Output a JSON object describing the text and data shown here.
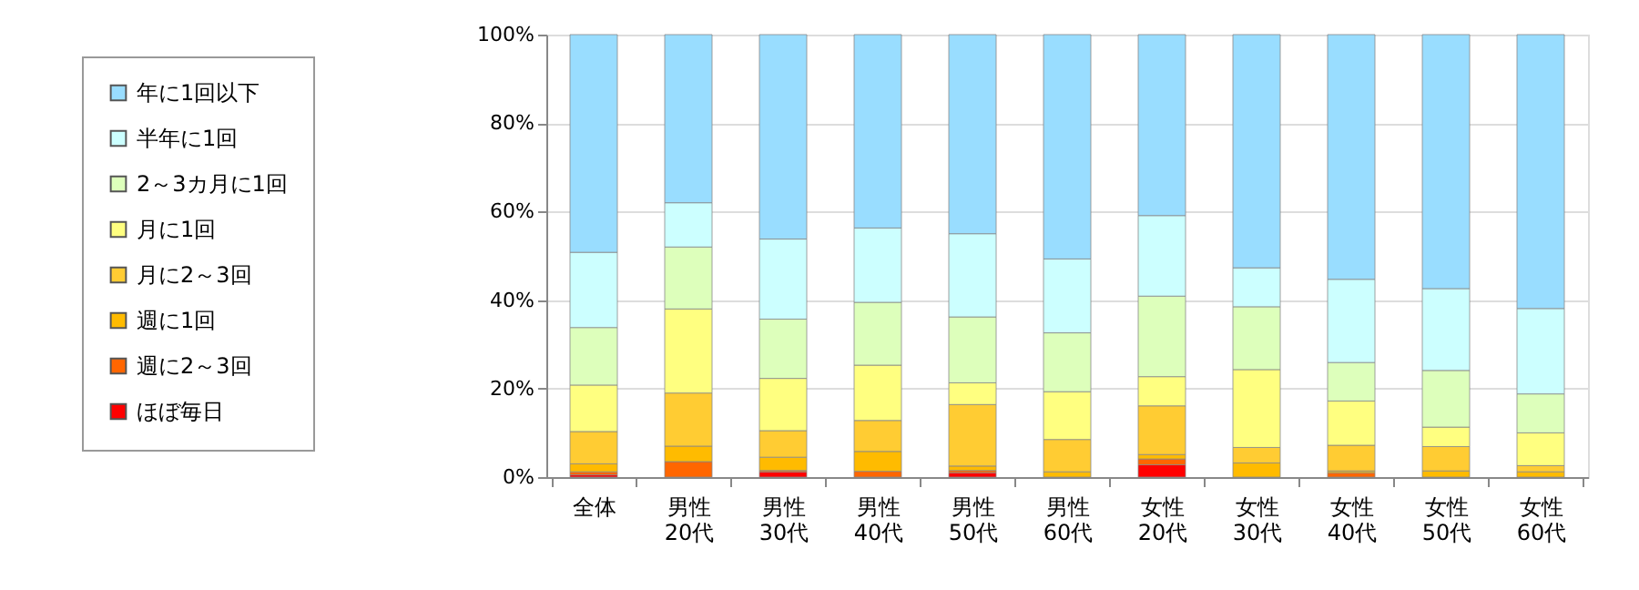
{
  "chart_data": {
    "type": "bar",
    "stacked": true,
    "legend": "left",
    "grid": "y",
    "categories": [
      "全体",
      "男性\n20代",
      "男性\n30代",
      "男性\n40代",
      "男性\n50代",
      "男性\n60代",
      "女性\n20代",
      "女性\n30代",
      "女性\n40代",
      "女性\n50代",
      "女性\n60代"
    ],
    "ylim": [
      0,
      100
    ],
    "yticks": [
      {
        "value": 0,
        "label": "0%"
      },
      {
        "value": 20,
        "label": "20%"
      },
      {
        "value": 40,
        "label": "40%"
      },
      {
        "value": 60,
        "label": "60%"
      },
      {
        "value": 80,
        "label": "80%"
      },
      {
        "value": 100,
        "label": "100%"
      }
    ],
    "series": [
      {
        "name": "ほぼ毎日",
        "color": "#ff0000",
        "values": [
          0.5,
          0,
          1.2,
          0,
          1.0,
          0,
          2.8,
          0,
          0,
          0,
          0
        ]
      },
      {
        "name": "週に2～3回",
        "color": "#ff6600",
        "values": [
          0.7,
          3.5,
          0.3,
          1.3,
          0.5,
          0,
          1.3,
          0,
          1.0,
          0,
          0
        ]
      },
      {
        "name": "週に1回",
        "color": "#ffbb00",
        "values": [
          1.8,
          3.5,
          3.0,
          4.5,
          1.0,
          1.2,
          1.0,
          3.2,
          0.4,
          1.4,
          1.2
        ]
      },
      {
        "name": "月に2～3回",
        "color": "#ffcc33",
        "values": [
          7.3,
          12,
          6,
          7,
          13.9,
          7.3,
          11,
          3.5,
          5.8,
          5.5,
          1.4
        ]
      },
      {
        "name": "月に1回",
        "color": "#ffff80",
        "values": [
          10.5,
          19,
          11.8,
          12.5,
          4.9,
          10.8,
          6.6,
          17.6,
          10,
          4.4,
          7.4
        ]
      },
      {
        "name": "2～3カ月に1回",
        "color": "#ddffbb",
        "values": [
          13,
          14,
          13.4,
          14.2,
          14.9,
          13.3,
          18.2,
          14.2,
          8.7,
          12.8,
          8.8
        ]
      },
      {
        "name": "半年に1回",
        "color": "#ccffff",
        "values": [
          17,
          10,
          18.1,
          16.8,
          18.8,
          16.7,
          18.2,
          8.8,
          18.8,
          18.5,
          19.3
        ]
      },
      {
        "name": "年に1回以下",
        "color": "#99ddff",
        "values": [
          49.2,
          38,
          46.2,
          43.7,
          45,
          50.7,
          40.9,
          52.7,
          55.3,
          57.4,
          61.9
        ]
      }
    ]
  }
}
